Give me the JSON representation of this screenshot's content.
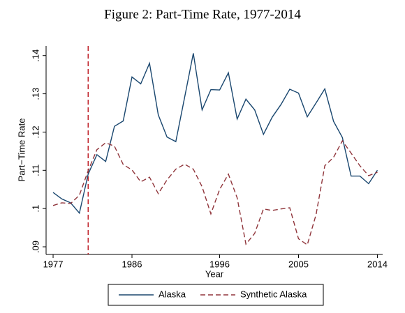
{
  "chart_data": {
    "type": "line",
    "title": "Figure 2: Part-Time Rate, 1977-2014",
    "x_label": "Year",
    "y_label": "Part−Time Rate",
    "x": [
      1977,
      1978,
      1979,
      1980,
      1981,
      1982,
      1983,
      1984,
      1985,
      1986,
      1987,
      1988,
      1989,
      1990,
      1991,
      1992,
      1993,
      1994,
      1995,
      1996,
      1997,
      1998,
      1999,
      2000,
      2001,
      2002,
      2003,
      2004,
      2005,
      2006,
      2007,
      2008,
      2009,
      2010,
      2011,
      2012,
      2013,
      2014
    ],
    "series": [
      {
        "name": "Alaska",
        "color": "#1a476f",
        "dash": false,
        "values": [
          0.1042,
          0.1025,
          0.1015,
          0.0988,
          0.109,
          0.1141,
          0.1123,
          0.1215,
          0.1229,
          0.1344,
          0.1326,
          0.138,
          0.1245,
          0.1187,
          0.1175,
          0.129,
          0.1406,
          0.1258,
          0.1311,
          0.131,
          0.1355,
          0.1234,
          0.1286,
          0.1258,
          0.1194,
          0.1239,
          0.1272,
          0.1312,
          0.1302,
          0.124,
          0.1276,
          0.1313,
          0.1228,
          0.1186,
          0.1085,
          0.1085,
          0.1065,
          0.11
        ]
      },
      {
        "name": "Synthetic Alaska",
        "color": "#90353b",
        "dash": true,
        "values": [
          0.1008,
          0.1015,
          0.1013,
          0.1035,
          0.1099,
          0.1154,
          0.1172,
          0.1163,
          0.1115,
          0.1101,
          0.107,
          0.1082,
          0.1039,
          0.1075,
          0.1103,
          0.1116,
          0.1103,
          0.1057,
          0.0986,
          0.105,
          0.109,
          0.1028,
          0.0907,
          0.0935,
          0.0999,
          0.0995,
          0.0999,
          0.1002,
          0.0921,
          0.0905,
          0.0984,
          0.1112,
          0.1134,
          0.1177,
          0.1145,
          0.1112,
          0.1086,
          0.1095
        ]
      }
    ],
    "vline": {
      "x": 1981,
      "color": "#c0232b"
    },
    "xlim": [
      1976.2,
      2014.6
    ],
    "xticks": [
      1977,
      1986,
      1996,
      2005,
      2014
    ],
    "ylim": [
      0.088,
      0.1425
    ],
    "yticks": [
      {
        "value": 0.09,
        "label": ".09"
      },
      {
        "value": 0.1,
        "label": ".1"
      },
      {
        "value": 0.11,
        "label": ".11"
      },
      {
        "value": 0.12,
        "label": ".12"
      },
      {
        "value": 0.13,
        "label": ".13"
      },
      {
        "value": 0.14,
        "label": ".14"
      }
    ],
    "legend": "bottom"
  }
}
